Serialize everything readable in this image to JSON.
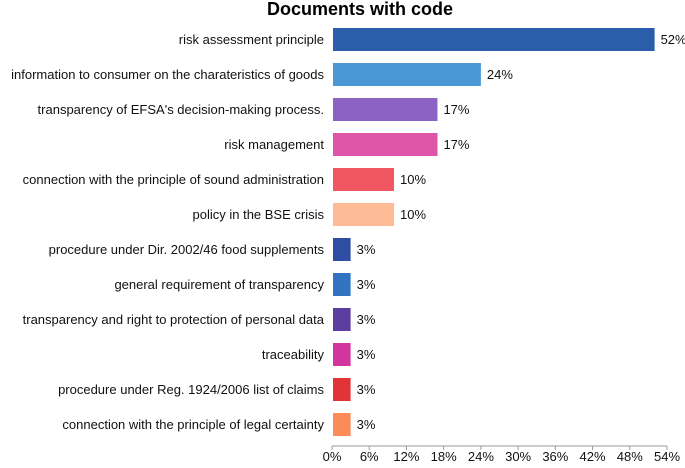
{
  "chart_data": {
    "type": "bar",
    "orientation": "horizontal",
    "title": "Documents with code",
    "xlabel": "",
    "ylabel": "",
    "xlim": [
      0,
      54
    ],
    "x_ticks": [
      "0%",
      "6%",
      "12%",
      "18%",
      "24%",
      "30%",
      "36%",
      "42%",
      "48%",
      "54%"
    ],
    "grid": false,
    "legend": "none",
    "categories": [
      "risk assessment principle",
      "information to consumer on the charateristics of goods",
      "transparency of EFSA's decision-making process.",
      "risk management",
      "connection with the principle of sound administration",
      "policy in the BSE crisis",
      "procedure under Dir. 2002/46 food supplements",
      "general requirement of transparency",
      "transparency and right to protection of personal data",
      "traceability",
      "procedure under Reg. 1924/2006 list of claims",
      "connection with the principle of legal certainty"
    ],
    "values": [
      52,
      24,
      17,
      17,
      10,
      10,
      3,
      3,
      3,
      3,
      3,
      3
    ],
    "value_labels": [
      "52%",
      "24%",
      "17%",
      "17%",
      "10%",
      "10%",
      "3%",
      "3%",
      "3%",
      "3%",
      "3%",
      "3%"
    ],
    "colors": [
      "#2a5daa",
      "#4a98d6",
      "#8c63c4",
      "#dd56a8",
      "#f05761",
      "#fdbc96",
      "#2e4ea3",
      "#3173c0",
      "#5c3ea1",
      "#d2359e",
      "#e23436",
      "#fb8b59"
    ]
  }
}
